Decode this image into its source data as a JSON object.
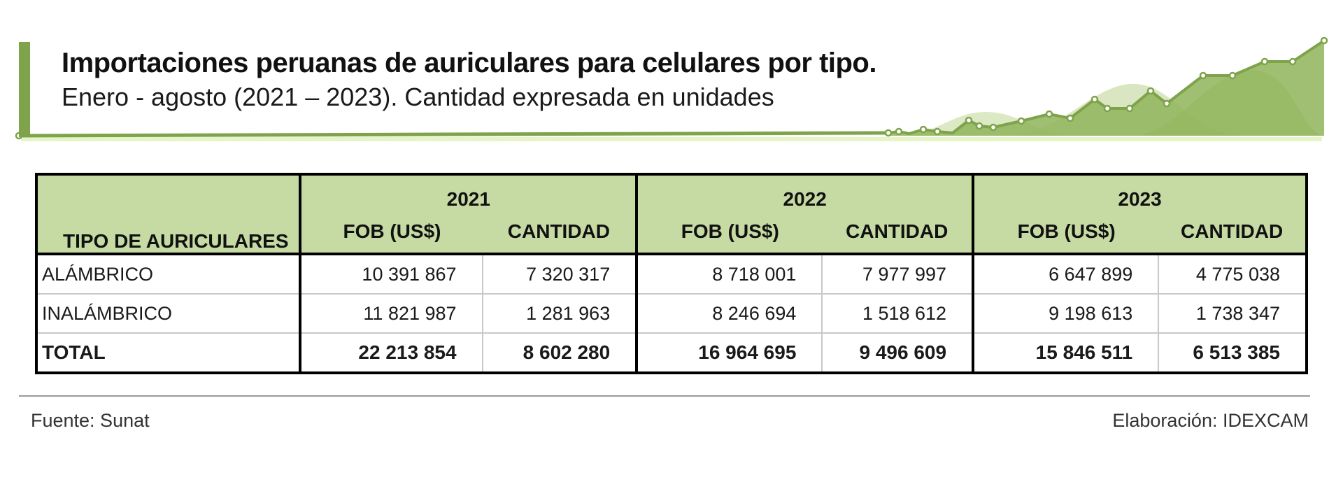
{
  "title": "Importaciones peruanas de auriculares para celulares por tipo.",
  "subtitle": "Enero - agosto (2021 – 2023). Cantidad expresada en unidades",
  "table": {
    "type_header": "TIPO DE AURICULARES",
    "years": [
      "2021",
      "2022",
      "2023"
    ],
    "fob_label": "FOB (US$)",
    "qty_label": "CANTIDAD",
    "rows": [
      {
        "label": "ALÁMBRICO",
        "values": [
          "10 391 867",
          "7 320 317",
          "8 718 001",
          "7 977 997",
          "6 647 899",
          "4 775 038"
        ]
      },
      {
        "label": "INALÁMBRICO",
        "values": [
          "11 821 987",
          "1 281 963",
          "8 246 694",
          "1 518 612",
          "9 198 613",
          "1 738 347"
        ]
      },
      {
        "label": "TOTAL",
        "values": [
          "22 213 854",
          "8 602 280",
          "16 964 695",
          "9 496 609",
          "15 846 511",
          "6 513 385"
        ]
      }
    ]
  },
  "source": "Fuente: Sunat",
  "credit": "Elaboración: IDEXCAM",
  "colors": {
    "accent": "#7ea34a",
    "header_fill": "#c6dba3"
  }
}
